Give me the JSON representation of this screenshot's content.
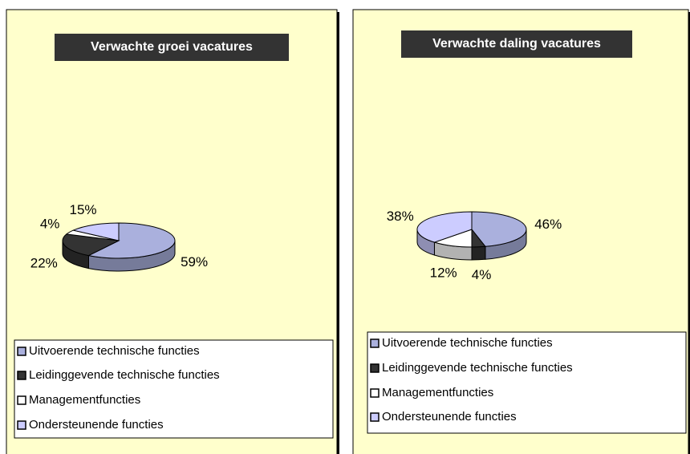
{
  "chart_data": [
    {
      "type": "pie",
      "title": "Verwachte groei vacatures",
      "categories": [
        "Uitvoerende technische functies",
        "Leidinggevende technische functies",
        "Managementfuncties",
        "Ondersteunende functies"
      ],
      "values": [
        59,
        22,
        4,
        15
      ],
      "value_labels": [
        "59%",
        "22%",
        "4%",
        "15%"
      ],
      "colors": [
        "#aab0dd",
        "#333333",
        "#ffffff",
        "#ccccff"
      ]
    },
    {
      "type": "pie",
      "title": "Verwachte daling vacatures",
      "categories": [
        "Uitvoerende technische functies",
        "Leidinggevende technische functies",
        "Managementfuncties",
        "Ondersteunende functies"
      ],
      "values": [
        46,
        4,
        12,
        38
      ],
      "value_labels": [
        "46%",
        "4%",
        "12%",
        "38%"
      ],
      "colors": [
        "#aab0dd",
        "#333333",
        "#ffffff",
        "#ccccff"
      ]
    }
  ]
}
